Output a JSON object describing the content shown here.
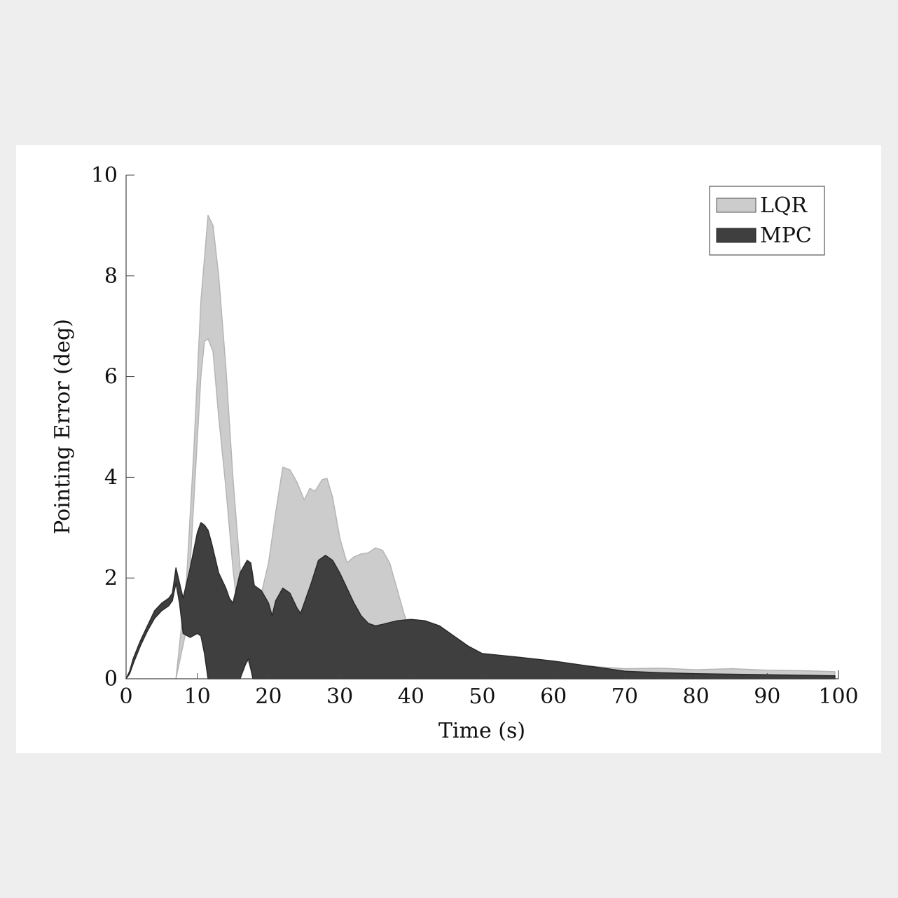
{
  "chart_data": {
    "type": "area",
    "title": "",
    "xlabel": "Time (s)",
    "ylabel": "Pointing Error (deg)",
    "xlim": [
      0,
      100
    ],
    "ylim": [
      0,
      10
    ],
    "xticks": [
      0,
      10,
      20,
      30,
      40,
      50,
      60,
      70,
      80,
      90,
      100
    ],
    "yticks": [
      0,
      2,
      4,
      6,
      8,
      10
    ],
    "grid": false,
    "legend_position": "top-right",
    "series": [
      {
        "name": "LQR",
        "color": "#cccccc",
        "edge_color": "#b5b5b5",
        "upper": [
          [
            7,
            0.0
          ],
          [
            8.5,
            2.0
          ],
          [
            9.5,
            4.5
          ],
          [
            10.5,
            7.5
          ],
          [
            11.5,
            9.2
          ],
          [
            12.2,
            9.0
          ],
          [
            13,
            8.0
          ],
          [
            14,
            6.2
          ],
          [
            15,
            4.0
          ],
          [
            16,
            2.2
          ],
          [
            17,
            1.2
          ],
          [
            18,
            1.0
          ],
          [
            19,
            1.7
          ],
          [
            20,
            2.3
          ],
          [
            21,
            3.3
          ],
          [
            22,
            4.2
          ],
          [
            23,
            4.15
          ],
          [
            24,
            3.9
          ],
          [
            25,
            3.55
          ],
          [
            25.8,
            3.78
          ],
          [
            26.5,
            3.72
          ],
          [
            27.5,
            3.95
          ],
          [
            28.2,
            3.98
          ],
          [
            29,
            3.6
          ],
          [
            30,
            2.8
          ],
          [
            31,
            2.3
          ],
          [
            32,
            2.42
          ],
          [
            33,
            2.48
          ],
          [
            34,
            2.5
          ],
          [
            35,
            2.6
          ],
          [
            36,
            2.55
          ],
          [
            37,
            2.3
          ],
          [
            38,
            1.8
          ],
          [
            39,
            1.3
          ],
          [
            40,
            0.9
          ],
          [
            45,
            0.6
          ],
          [
            50,
            0.45
          ],
          [
            55,
            0.35
          ],
          [
            60,
            0.3
          ],
          [
            65,
            0.25
          ],
          [
            70,
            0.2
          ],
          [
            75,
            0.21
          ],
          [
            80,
            0.18
          ],
          [
            85,
            0.2
          ],
          [
            90,
            0.17
          ],
          [
            95,
            0.16
          ],
          [
            99.5,
            0.14
          ]
        ],
        "lower": [
          [
            7,
            0.0
          ],
          [
            8.5,
            1.0
          ],
          [
            9.5,
            3.5
          ],
          [
            10.5,
            6.0
          ],
          [
            11,
            6.7
          ],
          [
            11.5,
            6.75
          ],
          [
            12.2,
            6.5
          ],
          [
            13,
            5.2
          ],
          [
            14,
            3.8
          ],
          [
            15,
            2.2
          ],
          [
            16,
            0.9
          ],
          [
            17,
            0.4
          ],
          [
            18,
            0.0
          ],
          [
            20,
            0.0
          ],
          [
            30,
            0.0
          ],
          [
            40,
            0.0
          ],
          [
            50,
            0.0
          ],
          [
            60,
            0.0
          ],
          [
            70,
            0.0
          ],
          [
            80,
            0.0
          ],
          [
            90,
            0.0
          ],
          [
            99.5,
            0.0
          ]
        ]
      },
      {
        "name": "MPC",
        "color": "#3f3f3f",
        "edge_color": "#2a2a2a",
        "upper": [
          [
            0,
            0.0
          ],
          [
            0.5,
            0.15
          ],
          [
            1,
            0.4
          ],
          [
            2,
            0.75
          ],
          [
            3,
            1.05
          ],
          [
            4,
            1.35
          ],
          [
            5,
            1.5
          ],
          [
            6,
            1.6
          ],
          [
            6.5,
            1.7
          ],
          [
            7,
            2.2
          ],
          [
            7.5,
            1.9
          ],
          [
            8,
            1.6
          ],
          [
            9,
            2.2
          ],
          [
            10,
            2.9
          ],
          [
            10.5,
            3.1
          ],
          [
            11,
            3.05
          ],
          [
            11.5,
            2.95
          ],
          [
            12,
            2.7
          ],
          [
            12.5,
            2.4
          ],
          [
            13,
            2.1
          ],
          [
            14,
            1.8
          ],
          [
            14.5,
            1.6
          ],
          [
            15,
            1.5
          ],
          [
            15.5,
            1.8
          ],
          [
            16,
            2.1
          ],
          [
            17,
            2.35
          ],
          [
            17.5,
            2.3
          ],
          [
            18,
            1.85
          ],
          [
            19,
            1.75
          ],
          [
            20,
            1.5
          ],
          [
            20.5,
            1.25
          ],
          [
            21,
            1.55
          ],
          [
            22,
            1.8
          ],
          [
            23,
            1.7
          ],
          [
            24,
            1.4
          ],
          [
            24.5,
            1.3
          ],
          [
            25,
            1.5
          ],
          [
            26,
            1.9
          ],
          [
            27,
            2.35
          ],
          [
            28,
            2.45
          ],
          [
            29,
            2.35
          ],
          [
            30,
            2.1
          ],
          [
            31,
            1.8
          ],
          [
            32,
            1.5
          ],
          [
            33,
            1.25
          ],
          [
            34,
            1.1
          ],
          [
            35,
            1.05
          ],
          [
            36,
            1.08
          ],
          [
            38,
            1.15
          ],
          [
            40,
            1.18
          ],
          [
            42,
            1.15
          ],
          [
            44,
            1.05
          ],
          [
            46,
            0.85
          ],
          [
            48,
            0.65
          ],
          [
            50,
            0.5
          ],
          [
            55,
            0.43
          ],
          [
            60,
            0.35
          ],
          [
            65,
            0.25
          ],
          [
            70,
            0.15
          ],
          [
            75,
            0.12
          ],
          [
            80,
            0.1
          ],
          [
            85,
            0.09
          ],
          [
            90,
            0.08
          ],
          [
            95,
            0.07
          ],
          [
            99.5,
            0.06
          ]
        ],
        "lower": [
          [
            0,
            0.0
          ],
          [
            0.5,
            0.1
          ],
          [
            1,
            0.3
          ],
          [
            2,
            0.65
          ],
          [
            3,
            0.95
          ],
          [
            4,
            1.2
          ],
          [
            5,
            1.35
          ],
          [
            6,
            1.45
          ],
          [
            6.5,
            1.55
          ],
          [
            7,
            1.9
          ],
          [
            7.5,
            1.5
          ],
          [
            8,
            0.9
          ],
          [
            9,
            0.82
          ],
          [
            10,
            0.9
          ],
          [
            10.5,
            0.85
          ],
          [
            11,
            0.5
          ],
          [
            11.5,
            0.0
          ],
          [
            16,
            0.0
          ],
          [
            16.8,
            0.3
          ],
          [
            17.2,
            0.4
          ],
          [
            17.8,
            0.0
          ],
          [
            20,
            0.0
          ],
          [
            30,
            0.0
          ],
          [
            40,
            0.0
          ],
          [
            50,
            0.0
          ],
          [
            60,
            0.0
          ],
          [
            70,
            0.0
          ],
          [
            80,
            0.0
          ],
          [
            90,
            0.0
          ],
          [
            99.5,
            0.0
          ]
        ]
      }
    ]
  }
}
